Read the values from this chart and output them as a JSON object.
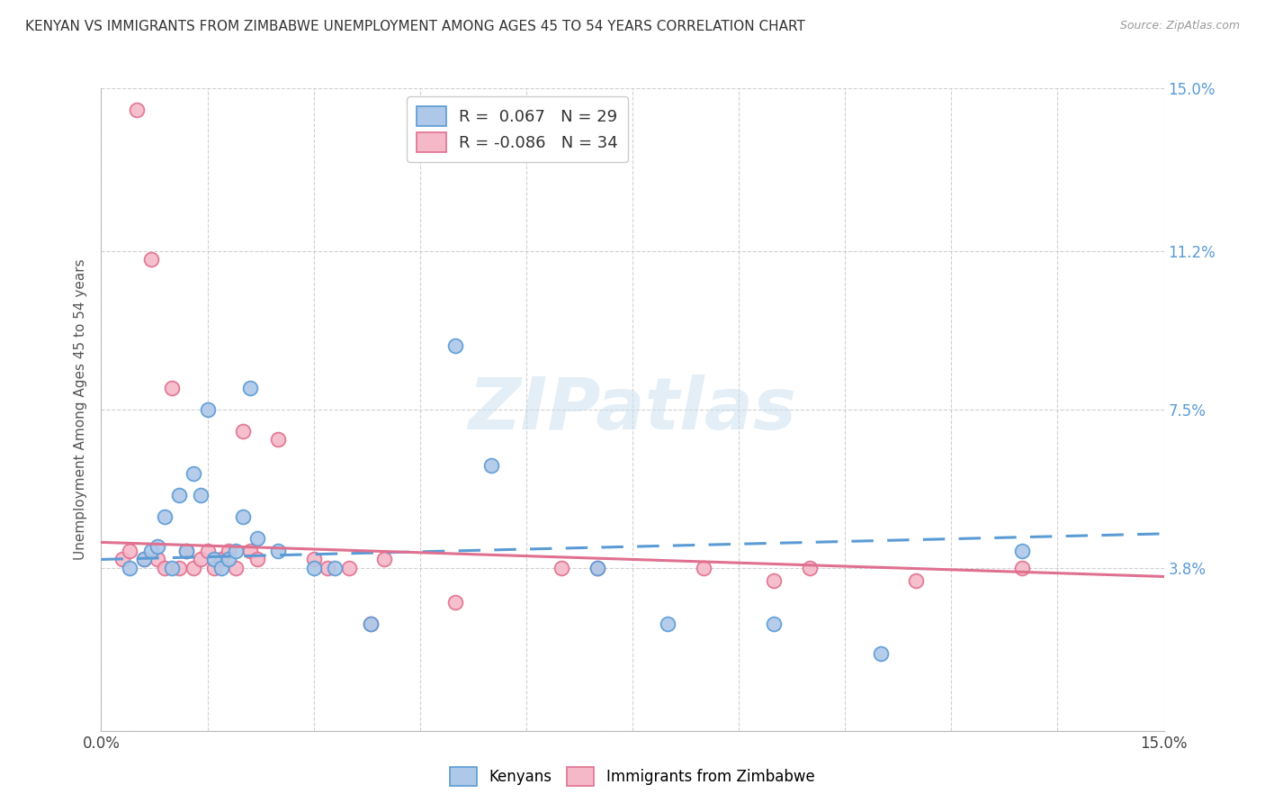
{
  "title": "KENYAN VS IMMIGRANTS FROM ZIMBABWE UNEMPLOYMENT AMONG AGES 45 TO 54 YEARS CORRELATION CHART",
  "source": "Source: ZipAtlas.com",
  "ylabel": "Unemployment Among Ages 45 to 54 years",
  "xmin": 0.0,
  "xmax": 0.15,
  "ymin": 0.0,
  "ymax": 0.15,
  "kenyan_color": "#adc8e8",
  "zimbabwe_color": "#f5b8c8",
  "kenyan_edge_color": "#5b9bd5",
  "zimbabwe_edge_color": "#e07090",
  "kenyan_R": "0.067",
  "kenyan_N": 29,
  "zimbabwe_R": "-0.086",
  "zimbabwe_N": 34,
  "watermark": "ZIPatlas",
  "kenyan_line_x": [
    0.0,
    0.15
  ],
  "kenyan_line_y": [
    0.04,
    0.046
  ],
  "zimbabwe_line_x": [
    0.0,
    0.15
  ],
  "zimbabwe_line_y": [
    0.044,
    0.036
  ],
  "kenyan_x": [
    0.004,
    0.006,
    0.007,
    0.008,
    0.009,
    0.01,
    0.011,
    0.012,
    0.013,
    0.014,
    0.015,
    0.016,
    0.017,
    0.018,
    0.019,
    0.02,
    0.021,
    0.022,
    0.025,
    0.03,
    0.033,
    0.038,
    0.05,
    0.055,
    0.07,
    0.08,
    0.095,
    0.11,
    0.13
  ],
  "kenyan_y": [
    0.038,
    0.04,
    0.042,
    0.043,
    0.05,
    0.038,
    0.055,
    0.042,
    0.06,
    0.055,
    0.075,
    0.04,
    0.038,
    0.04,
    0.042,
    0.05,
    0.08,
    0.045,
    0.042,
    0.038,
    0.038,
    0.025,
    0.09,
    0.062,
    0.038,
    0.025,
    0.025,
    0.018,
    0.042
  ],
  "zimbabwe_x": [
    0.003,
    0.004,
    0.005,
    0.006,
    0.007,
    0.008,
    0.009,
    0.01,
    0.011,
    0.012,
    0.013,
    0.014,
    0.015,
    0.016,
    0.017,
    0.018,
    0.019,
    0.02,
    0.021,
    0.022,
    0.025,
    0.03,
    0.032,
    0.035,
    0.038,
    0.04,
    0.05,
    0.065,
    0.07,
    0.085,
    0.095,
    0.1,
    0.115,
    0.13
  ],
  "zimbabwe_y": [
    0.04,
    0.042,
    0.145,
    0.04,
    0.11,
    0.04,
    0.038,
    0.08,
    0.038,
    0.042,
    0.038,
    0.04,
    0.042,
    0.038,
    0.04,
    0.042,
    0.038,
    0.07,
    0.042,
    0.04,
    0.068,
    0.04,
    0.038,
    0.038,
    0.025,
    0.04,
    0.03,
    0.038,
    0.038,
    0.038,
    0.035,
    0.038,
    0.035,
    0.038
  ]
}
